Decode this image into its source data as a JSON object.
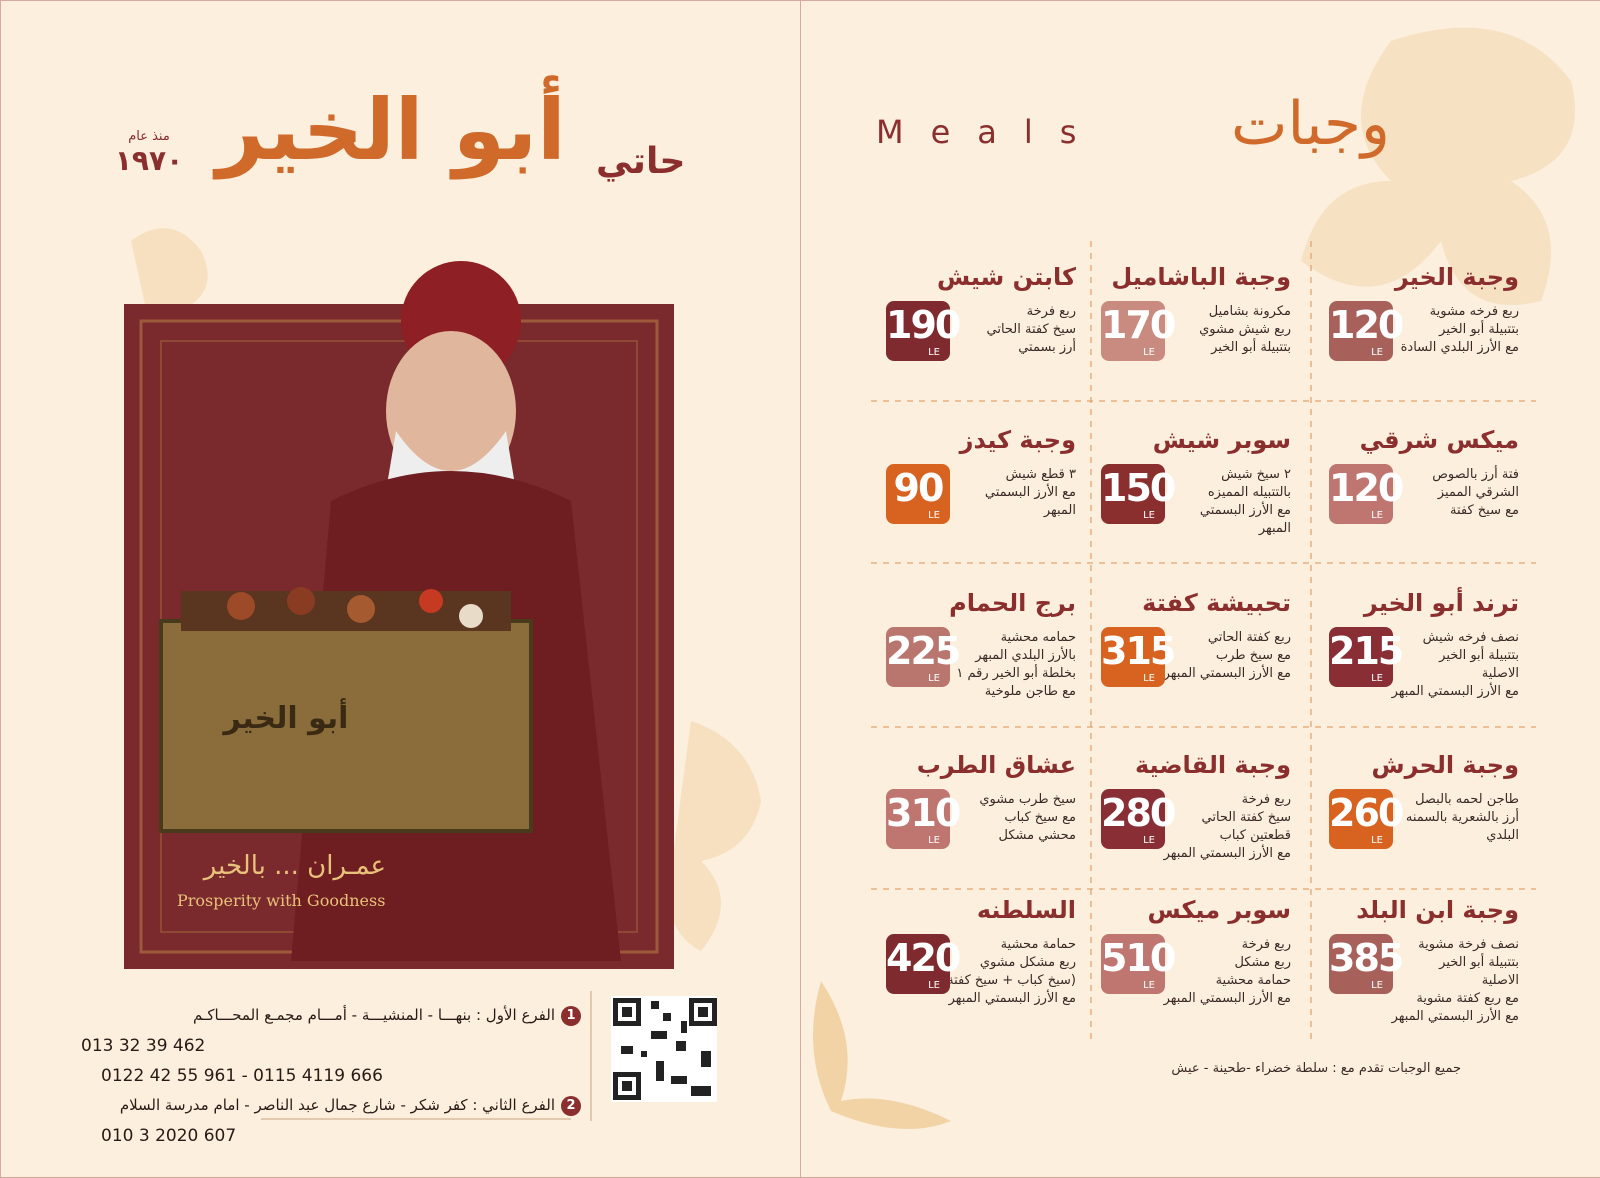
{
  "brand": {
    "prefix": "حاتي",
    "name": "أبو الخير",
    "since_label": "منذ عام",
    "since_year": "١٩٧٠"
  },
  "photo": {
    "box_text": "أبو الخير",
    "slogan_ar": "عمـران ... بالخير",
    "slogan_en": "Prosperity with Goodness"
  },
  "branches": [
    {
      "number": "1",
      "text": "الفرع الأول : بنهـــا - المنشيـــة - أمـــام مجمـع المحـــاكـم",
      "phones": [
        "013 32 39 462",
        "0122 42 55 961 - 0115 4119 666"
      ]
    },
    {
      "number": "2",
      "text": "الفرع الثاني : كفر شكر - شارع جمال عبد الناصر - امام مدرسة السلام",
      "phones": [
        "010 3 2020 607"
      ]
    }
  ],
  "meals": {
    "title_ar": "وجبات",
    "title_en": "Meals",
    "currency": "LE",
    "items": [
      {
        "name": "وجبة الخير",
        "price": "120",
        "color": "#a8615a",
        "description": [
          "ربع فرخه مشوية",
          "بتتبيلة أبو الخير",
          "مع الأرز البلدي السادة"
        ]
      },
      {
        "name": "وجبة الباشاميل",
        "price": "170",
        "color": "#c98a80",
        "description": [
          "مكرونة بشاميل",
          "ربع شيش مشوي",
          "بتتبيلة أبو الخير"
        ]
      },
      {
        "name": "كابتن شيش",
        "price": "190",
        "color": "#7f2a2e",
        "description": [
          "ربع فرخة",
          "سيخ كفتة الحاتي",
          "أرز بسمتي"
        ]
      },
      {
        "name": "ميكس شرقي",
        "price": "120",
        "color": "#c07670",
        "description": [
          "فتة أرز بالصوص",
          "الشرقي المميز",
          "مع سيخ كفتة"
        ]
      },
      {
        "name": "سوبر شيش",
        "price": "150",
        "color": "#8a2e2e",
        "description": [
          "٢ سيخ شيش",
          "بالتتبيله المميزه",
          "مع الأرز البسمتي",
          "المبهر"
        ]
      },
      {
        "name": "وجبة كيدز",
        "price": "90",
        "color": "#d8621f",
        "description": [
          "٣ قطع شيش",
          "مع الأرز البسمتي",
          "المبهر"
        ]
      },
      {
        "name": "ترند أبو الخير",
        "price": "215",
        "color": "#8a2e35",
        "description": [
          "نصف فرخه شيش",
          "بتتبيلة أبو الخير",
          "الاصلية",
          "مع الأرز البسمتي المبهر"
        ]
      },
      {
        "name": "تحبيشة كفتة",
        "price": "315",
        "color": "#d8621f",
        "description": [
          "ربع كفتة الحاتي",
          "مع سيخ طرب",
          "مع الأرز البسمتي المبهر"
        ]
      },
      {
        "name": "برج الحمام",
        "price": "225",
        "color": "#b8766e",
        "description": [
          "حمامه محشية",
          "بالأرز البلدي المبهر",
          "بخلطة أبو الخير رقم ١",
          "مع طاجن ملوخية"
        ]
      },
      {
        "name": "وجبة الحرش",
        "price": "260",
        "color": "#d8621f",
        "description": [
          "طاجن لحمه بالبصل",
          "أرز بالشعرية بالسمنه",
          "البلدي"
        ]
      },
      {
        "name": "وجبة القاضية",
        "price": "280",
        "color": "#8a2e35",
        "description": [
          "ربع فرخة",
          "سيخ كفتة الحاتي",
          "قطعتين كباب",
          "مع الأرز البسمتي المبهر"
        ]
      },
      {
        "name": "عشاق الطرب",
        "price": "310",
        "color": "#c07670",
        "description": [
          "سيخ طرب مشوي",
          "مع سيخ كباب",
          "محشي مشكل"
        ]
      },
      {
        "name": "وجبة ابن البلد",
        "price": "385",
        "color": "#a8615a",
        "description": [
          "نصف فرخة مشوية",
          "بتتبيلة أبو الخير",
          "الاصلية",
          "مع ربع كفتة مشوية",
          "مع الأرز البسمتي المبهر"
        ]
      },
      {
        "name": "سوبر ميكس",
        "price": "510",
        "color": "#c07670",
        "description": [
          "ربع فرخة",
          "ربع مشكل",
          "حمامة محشية",
          "مع الأرز البسمتي المبهر"
        ]
      },
      {
        "name": "السلطنه",
        "price": "420",
        "color": "#7f2a2e",
        "description": [
          "حمامة محشية",
          "ربع مشكل مشوي",
          "(سيخ كباب + سيخ كفتة)",
          "مع الأرز البسمتي المبهر"
        ]
      }
    ],
    "footnote": "جميع الوجبات تقدم مع : سلطة خضراء -طحينة - عيش"
  }
}
